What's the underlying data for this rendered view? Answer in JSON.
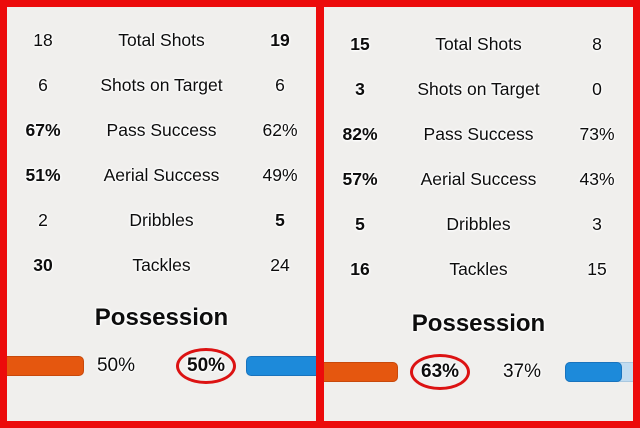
{
  "colors": {
    "frame_red": "#ec0b0b",
    "circle_red": "#dc1212",
    "home_orange": "#e5570f",
    "away_blue": "#1d8ada",
    "away_blue_track": "#c2dcf0",
    "background": "#f0efed",
    "text": "#0d0d0d"
  },
  "panels": [
    {
      "side": "left",
      "rows": [
        {
          "home": "18",
          "home_bold": false,
          "label": "Total Shots",
          "away": "19",
          "away_bold": true
        },
        {
          "home": "6",
          "home_bold": false,
          "label": "Shots on Target",
          "away": "6",
          "away_bold": false
        },
        {
          "home": "67%",
          "home_bold": true,
          "label": "Pass Success",
          "away": "62%",
          "away_bold": false
        },
        {
          "home": "51%",
          "home_bold": true,
          "label": "Aerial Success",
          "away": "49%",
          "away_bold": false
        },
        {
          "home": "2",
          "home_bold": false,
          "label": "Dribbles",
          "away": "5",
          "away_bold": true
        },
        {
          "home": "30",
          "home_bold": true,
          "label": "Tackles",
          "away": "24",
          "away_bold": false
        }
      ],
      "possession": {
        "title": "Possession",
        "home_pct": "50%",
        "away_pct": "50%",
        "circled_side": "away"
      }
    },
    {
      "side": "right",
      "rows": [
        {
          "home": "15",
          "home_bold": true,
          "label": "Total Shots",
          "away": "8",
          "away_bold": false
        },
        {
          "home": "3",
          "home_bold": true,
          "label": "Shots on Target",
          "away": "0",
          "away_bold": false
        },
        {
          "home": "82%",
          "home_bold": true,
          "label": "Pass Success",
          "away": "73%",
          "away_bold": false
        },
        {
          "home": "57%",
          "home_bold": true,
          "label": "Aerial Success",
          "away": "43%",
          "away_bold": false
        },
        {
          "home": "5",
          "home_bold": true,
          "label": "Dribbles",
          "away": "3",
          "away_bold": false
        },
        {
          "home": "16",
          "home_bold": true,
          "label": "Tackles",
          "away": "15",
          "away_bold": false
        }
      ],
      "possession": {
        "title": "Possession",
        "home_pct": "63%",
        "away_pct": "37%",
        "circled_side": "home"
      }
    }
  ]
}
